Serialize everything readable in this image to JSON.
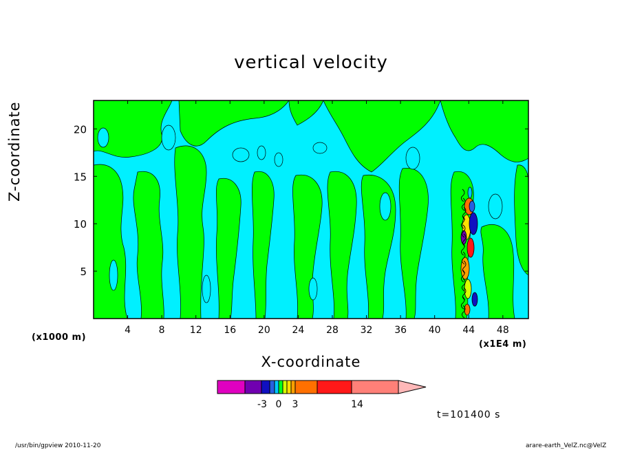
{
  "chart_data": {
    "type": "heatmap",
    "title": "vertical velocity",
    "xlabel": "X-coordinate",
    "ylabel": "Z-coordinate",
    "x_unit_left": "(x1000 m)",
    "x_unit_right": "(x1E4 m)",
    "xlim": [
      0,
      51
    ],
    "ylim": [
      0,
      23
    ],
    "x_ticks": [
      4,
      8,
      12,
      16,
      20,
      24,
      28,
      32,
      36,
      40,
      44,
      48
    ],
    "y_ticks": [
      5,
      10,
      15,
      20
    ],
    "time_label": "t=101400 s",
    "colorbar": {
      "tick_labels": [
        "-3",
        "0",
        "3",
        "14"
      ],
      "colors": [
        "#e000c0",
        "#7000b0",
        "#1010c0",
        "#2860e0",
        "#00c8ff",
        "#00ff20",
        "#d8ff00",
        "#ffe000",
        "#ffa000",
        "#ff7000",
        "#ff1818",
        "#ff8078",
        "#ffb8b8"
      ]
    },
    "field_colors": {
      "negative_weak": "#00f0ff",
      "positive_weak": "#00ff00",
      "contour_line": "#000000"
    }
  },
  "footer": {
    "program": "/usr/bin/gpview   2010-11-20",
    "source": "arare-earth_VelZ.nc@VelZ"
  }
}
